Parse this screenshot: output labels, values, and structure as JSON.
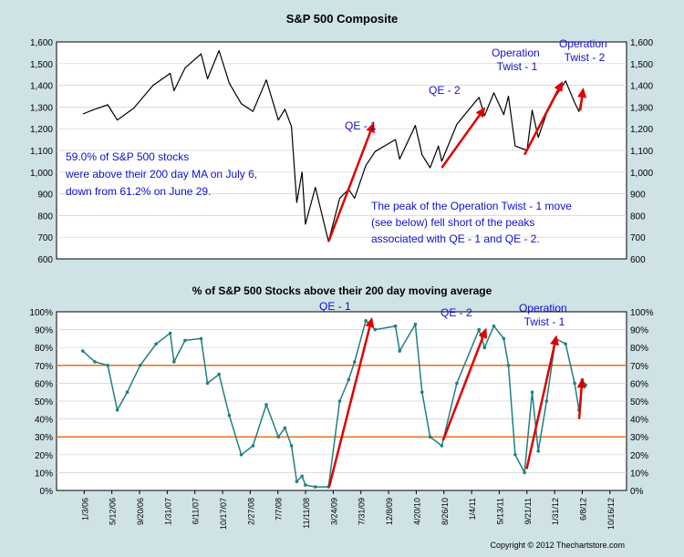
{
  "chart_data": [
    {
      "type": "line",
      "title": "S&P 500 Composite",
      "ylim": [
        600,
        1600
      ],
      "yticks": [
        "600",
        "700",
        "800",
        "900",
        "1,000",
        "1,100",
        "1,200",
        "1,300",
        "1,400",
        "1,500",
        "1,600"
      ],
      "grid": true,
      "series": [
        {
          "color": "#000000",
          "x": [
            "2006-01-03",
            "2006-03-01",
            "2006-05-01",
            "2006-06-15",
            "2006-09-01",
            "2006-12-01",
            "2007-02-20",
            "2007-03-10",
            "2007-05-01",
            "2007-07-16",
            "2007-08-15",
            "2007-10-09",
            "2007-11-26",
            "2008-01-22",
            "2008-03-17",
            "2008-05-19",
            "2008-07-15",
            "2008-08-15",
            "2008-09-15",
            "2008-10-10",
            "2008-11-04",
            "2008-11-20",
            "2009-01-06",
            "2009-03-09",
            "2009-05-01",
            "2009-06-12",
            "2009-07-10",
            "2009-09-01",
            "2009-10-15",
            "2010-01-19",
            "2010-02-08",
            "2010-04-23",
            "2010-05-25",
            "2010-07-02",
            "2010-08-10",
            "2010-08-26",
            "2010-11-05",
            "2011-02-18",
            "2011-03-16",
            "2011-04-29",
            "2011-06-15",
            "2011-07-07",
            "2011-08-08",
            "2011-10-03",
            "2011-10-27",
            "2011-11-25",
            "2012-01-03",
            "2012-02-15",
            "2012-04-02",
            "2012-05-15",
            "2012-06-04",
            "2012-06-20",
            "2012-07-06"
          ],
          "values": [
            1268,
            1290,
            1310,
            1240,
            1295,
            1400,
            1455,
            1375,
            1480,
            1545,
            1430,
            1560,
            1410,
            1315,
            1280,
            1425,
            1240,
            1290,
            1210,
            860,
            1000,
            760,
            930,
            680,
            880,
            920,
            880,
            1030,
            1095,
            1150,
            1060,
            1215,
            1080,
            1020,
            1120,
            1050,
            1220,
            1345,
            1260,
            1365,
            1265,
            1350,
            1120,
            1100,
            1285,
            1160,
            1270,
            1350,
            1420,
            1320,
            1280,
            1360,
            1355
          ]
        }
      ],
      "text_annotation": "59.0% of S&P 500 stocks were above their 200 day MA on July 6, down from 61.2% on June 29.",
      "note": "The peak of the Operation Twist - 1 move (see below) fell short of the peaks associated with QE - 1 and QE - 2.",
      "annotations": [
        "QE - 1",
        "QE - 2",
        "Operation Twist - 1",
        "Operation Twist - 2"
      ]
    },
    {
      "type": "line",
      "title": "% of S&P 500 Stocks above their 200 day moving average",
      "ylim": [
        0,
        100
      ],
      "yticks": [
        "0%",
        "10%",
        "20%",
        "30%",
        "40%",
        "50%",
        "60%",
        "70%",
        "80%",
        "90%",
        "100%"
      ],
      "reference_lines": [
        30,
        70
      ],
      "grid": true,
      "categories": [
        "1/3/06",
        "5/12/06",
        "9/20/06",
        "1/31/07",
        "6/11/07",
        "10/17/07",
        "2/27/08",
        "7/7/08",
        "11/11/08",
        "3/24/09",
        "7/31/09",
        "12/8/09",
        "4/20/10",
        "8/26/10",
        "1/4/11",
        "5/13/11",
        "9/21/11",
        "1/31/12",
        "6/8/12",
        "10/16/12"
      ],
      "series": [
        {
          "color": "#1f8080",
          "x": [
            "2006-01-03",
            "2006-03-01",
            "2006-05-01",
            "2006-06-15",
            "2006-08-01",
            "2006-10-01",
            "2006-12-15",
            "2007-02-20",
            "2007-03-10",
            "2007-05-01",
            "2007-07-16",
            "2007-08-15",
            "2007-10-09",
            "2007-11-26",
            "2008-01-22",
            "2008-03-17",
            "2008-05-19",
            "2008-07-15",
            "2008-08-15",
            "2008-09-15",
            "2008-10-10",
            "2008-11-04",
            "2008-11-20",
            "2009-01-06",
            "2009-03-09",
            "2009-05-01",
            "2009-06-12",
            "2009-07-10",
            "2009-09-01",
            "2009-10-15",
            "2010-01-19",
            "2010-02-08",
            "2010-04-23",
            "2010-05-25",
            "2010-07-02",
            "2010-08-26",
            "2010-11-05",
            "2011-02-18",
            "2011-03-16",
            "2011-04-29",
            "2011-06-15",
            "2011-07-07",
            "2011-08-08",
            "2011-09-21",
            "2011-10-27",
            "2011-11-25",
            "2012-01-03",
            "2012-02-15",
            "2012-04-02",
            "2012-05-15",
            "2012-06-04",
            "2012-06-20",
            "2012-07-06"
          ],
          "values": [
            78,
            72,
            70,
            45,
            55,
            70,
            82,
            88,
            72,
            84,
            85,
            60,
            65,
            42,
            20,
            25,
            48,
            30,
            35,
            25,
            5,
            8,
            3,
            2,
            2,
            50,
            62,
            72,
            95,
            90,
            92,
            78,
            93,
            55,
            30,
            25,
            60,
            90,
            80,
            92,
            85,
            70,
            20,
            10,
            55,
            22,
            50,
            85,
            82,
            60,
            45,
            62,
            59
          ]
        }
      ],
      "annotations": [
        "QE - 1",
        "QE - 2",
        "Operation Twist - 1"
      ]
    }
  ],
  "footer": {
    "copyright": "Copyright © 2012 Thechartstore.com"
  }
}
